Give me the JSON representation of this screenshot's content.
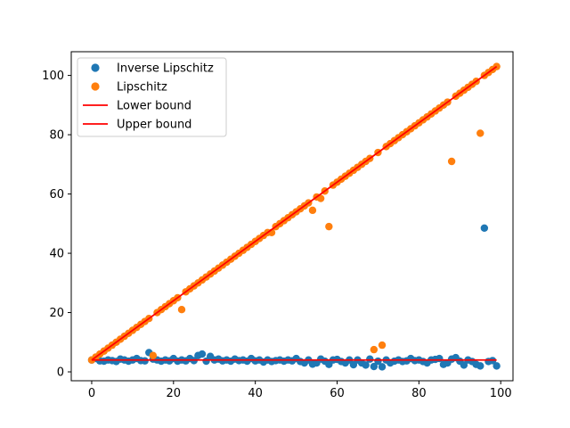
{
  "chart_data": {
    "type": "scatter",
    "title": "",
    "xlabel": "",
    "ylabel": "",
    "xlim": [
      -5,
      103
    ],
    "ylim": [
      -3,
      108
    ],
    "xticks": [
      0,
      20,
      40,
      60,
      80,
      100
    ],
    "yticks": [
      0,
      20,
      40,
      60,
      80,
      100
    ],
    "grid": false,
    "legend_position": "upper-left",
    "series": [
      {
        "name": "Inverse Lipschitz",
        "kind": "scatter",
        "color": "#1f77b4",
        "x": [
          0,
          1,
          2,
          3,
          4,
          5,
          6,
          7,
          8,
          9,
          10,
          11,
          12,
          13,
          14,
          15,
          16,
          17,
          18,
          19,
          20,
          21,
          22,
          23,
          24,
          25,
          26,
          27,
          28,
          29,
          30,
          31,
          32,
          33,
          34,
          35,
          36,
          37,
          38,
          39,
          40,
          41,
          42,
          43,
          44,
          45,
          46,
          47,
          48,
          49,
          50,
          51,
          52,
          53,
          54,
          55,
          56,
          57,
          58,
          59,
          60,
          61,
          62,
          63,
          64,
          65,
          66,
          67,
          68,
          69,
          70,
          71,
          72,
          73,
          74,
          75,
          76,
          77,
          78,
          79,
          80,
          81,
          82,
          83,
          84,
          85,
          86,
          87,
          88,
          89,
          90,
          91,
          92,
          93,
          94,
          95,
          96,
          97,
          98,
          99
        ],
        "y": [
          4.0,
          4.5,
          3.7,
          3.6,
          4.0,
          3.8,
          3.5,
          4.3,
          4.0,
          3.6,
          4.0,
          4.5,
          3.8,
          3.7,
          6.5,
          4.3,
          4.0,
          3.6,
          4.0,
          3.7,
          4.5,
          3.6,
          4.0,
          3.7,
          4.5,
          3.8,
          5.5,
          6.0,
          3.6,
          5.2,
          4.0,
          4.3,
          3.7,
          4.0,
          3.6,
          4.3,
          3.8,
          4.0,
          3.6,
          4.5,
          3.7,
          4.0,
          3.3,
          4.0,
          3.5,
          3.8,
          4.0,
          3.6,
          4.0,
          3.7,
          4.5,
          3.5,
          3.0,
          4.0,
          2.6,
          3.0,
          4.3,
          3.6,
          2.5,
          4.0,
          4.2,
          3.5,
          3.0,
          4.0,
          2.4,
          4.0,
          3.0,
          2.3,
          4.3,
          1.8,
          3.6,
          1.7,
          4.0,
          3.0,
          3.6,
          4.0,
          3.5,
          3.7,
          4.5,
          3.8,
          4.0,
          3.5,
          3.0,
          4.0,
          4.2,
          4.5,
          2.5,
          3.0,
          4.3,
          4.8,
          3.6,
          2.3,
          4.0,
          3.5,
          2.5,
          2.0,
          48.5,
          3.5,
          3.8,
          2.0
        ]
      },
      {
        "name": "Lipschitz",
        "kind": "scatter",
        "color": "#ff7f0e",
        "x": [
          0,
          1,
          2,
          3,
          4,
          5,
          6,
          7,
          8,
          9,
          10,
          11,
          12,
          13,
          14,
          15,
          16,
          17,
          18,
          19,
          20,
          21,
          22,
          23,
          24,
          25,
          26,
          27,
          28,
          29,
          30,
          31,
          32,
          33,
          34,
          35,
          36,
          37,
          38,
          39,
          40,
          41,
          42,
          43,
          44,
          45,
          46,
          47,
          48,
          49,
          50,
          51,
          52,
          53,
          54,
          55,
          56,
          57,
          58,
          59,
          60,
          61,
          62,
          63,
          64,
          65,
          66,
          67,
          68,
          69,
          70,
          71,
          72,
          73,
          74,
          75,
          76,
          77,
          78,
          79,
          80,
          81,
          82,
          83,
          84,
          85,
          86,
          87,
          88,
          89,
          90,
          91,
          92,
          93,
          94,
          95,
          96,
          97,
          98,
          99
        ],
        "y": [
          4.0,
          5.0,
          6.0,
          7.0,
          8.0,
          9.0,
          10.0,
          11.0,
          12.0,
          13.0,
          14.0,
          15.0,
          16.0,
          17.0,
          18.0,
          5.5,
          20.0,
          21.0,
          22.0,
          23.0,
          24.0,
          25.0,
          21.0,
          27.0,
          28.0,
          29.0,
          30.0,
          31.0,
          32.0,
          33.0,
          34.0,
          35.0,
          36.0,
          37.0,
          38.0,
          39.0,
          40.0,
          41.0,
          42.0,
          43.0,
          44.0,
          45.0,
          46.0,
          47.0,
          47.0,
          49.0,
          50.0,
          51.0,
          52.0,
          53.0,
          54.0,
          55.0,
          56.0,
          57.0,
          54.5,
          59.0,
          58.5,
          61.0,
          49.0,
          63.0,
          64.0,
          65.0,
          66.0,
          67.0,
          68.0,
          69.0,
          70.0,
          71.0,
          72.0,
          7.5,
          74.0,
          9.0,
          76.0,
          77.0,
          78.0,
          79.0,
          80.0,
          81.0,
          82.0,
          83.0,
          84.0,
          85.0,
          86.0,
          87.0,
          88.0,
          89.0,
          90.0,
          91.0,
          71.0,
          93.0,
          94.0,
          95.0,
          96.0,
          97.0,
          98.0,
          80.5,
          100.0,
          101.0,
          102.0,
          103.0
        ]
      },
      {
        "name": "Lower bound",
        "kind": "line",
        "color": "#ff0000",
        "x": [
          0,
          99
        ],
        "y": [
          4,
          4
        ]
      },
      {
        "name": "Upper bound",
        "kind": "line",
        "color": "#ff0000",
        "x": [
          0,
          99
        ],
        "y": [
          4,
          103
        ]
      }
    ]
  }
}
